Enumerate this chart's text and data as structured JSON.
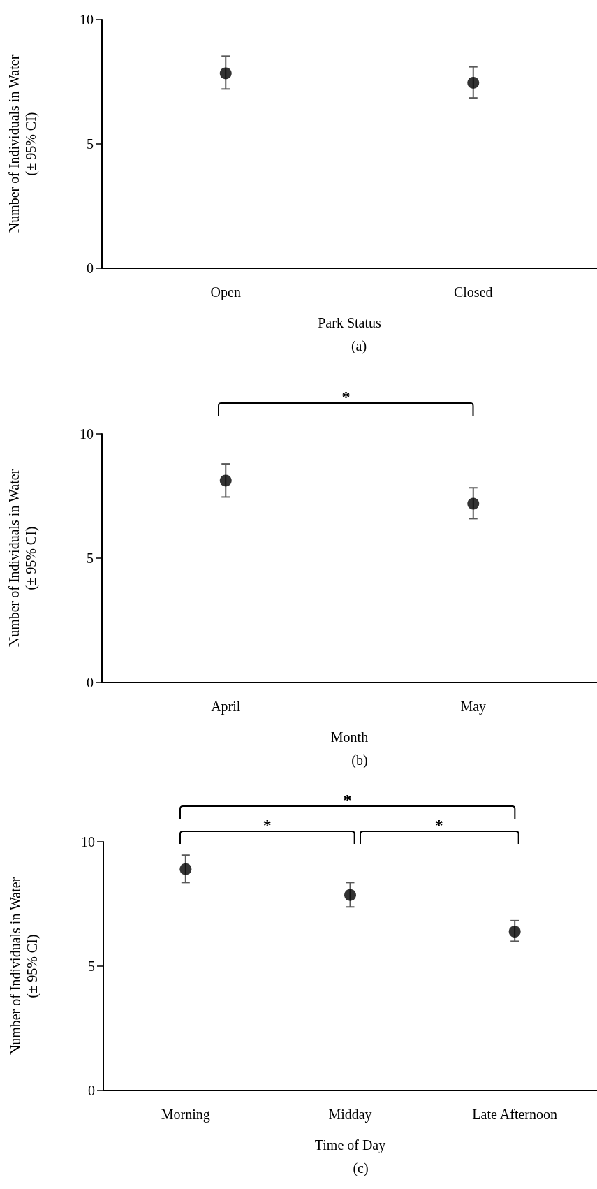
{
  "chart_data": [
    {
      "type": "scatter",
      "categories": [
        "Open",
        "Closed"
      ],
      "values": [
        7.84,
        7.46
      ],
      "errors": [
        [
          7.21,
          8.53
        ],
        [
          6.85,
          8.1
        ]
      ],
      "color": "#000000",
      "marker": "circle",
      "ylim": [
        0,
        10
      ],
      "yticks": [
        0,
        5,
        10
      ],
      "xlabel": "Park Status",
      "ylabel": "Number of Individuals in Water\n(± 95% CI)",
      "annotations": [
        "(a)"
      ]
    },
    {
      "type": "scatter",
      "categories": [
        "April",
        "May"
      ],
      "values": [
        8.12,
        7.19
      ],
      "errors": [
        [
          7.46,
          8.79
        ],
        [
          6.59,
          7.83
        ]
      ],
      "color": "#000000",
      "marker": "circle",
      "ylim": [
        0,
        10
      ],
      "yticks": [
        0,
        5,
        10
      ],
      "xlabel": "Month",
      "ylabel": "Number of Individuals in Water\n(± 95% CI)",
      "annotations": [
        "*",
        "(b)"
      ]
    },
    {
      "type": "scatter",
      "categories": [
        "Morning",
        "Midday",
        "Late Afternoon"
      ],
      "values": [
        8.9,
        7.86,
        6.39
      ],
      "errors": [
        [
          8.36,
          9.46
        ],
        [
          7.38,
          8.36
        ],
        [
          6.0,
          6.83
        ]
      ],
      "color": "#000000",
      "marker": "circle",
      "ylim": [
        0,
        10
      ],
      "yticks": [
        0,
        5,
        10
      ],
      "xlabel": "Time of Day",
      "ylabel": "Number of Individuals in Water\n(± 95% CI)",
      "annotations": [
        "*",
        "*",
        "*",
        "(c)"
      ]
    }
  ]
}
